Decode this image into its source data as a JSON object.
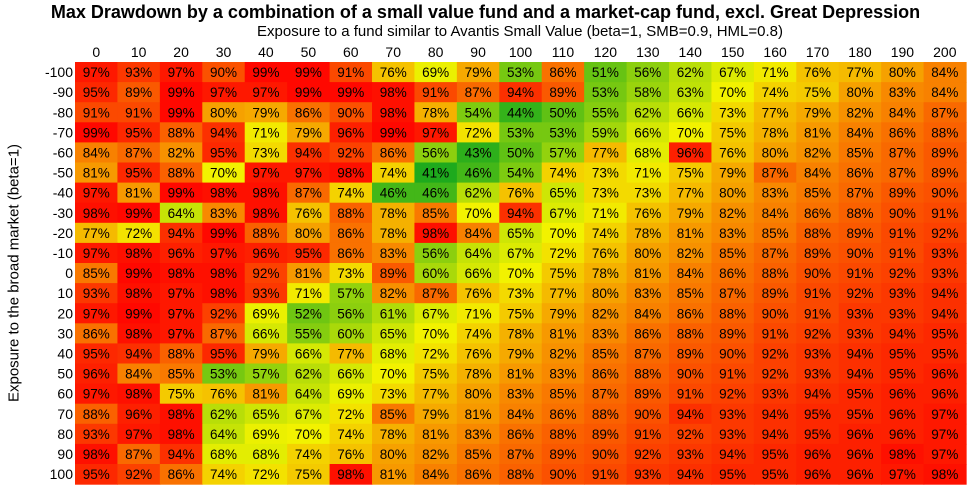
{
  "chart_data": {
    "type": "heatmap",
    "title": "Max Drawdown by a combination of a small value fund and a market-cap fund, excl. Great Depression",
    "xlabel": "Exposure to a fund similar to Avantis Small Value (beta=1, SMB=0.9, HML=0.8)",
    "ylabel": "Exposure to the broad market (beta=1)",
    "x": [
      0,
      10,
      20,
      30,
      40,
      50,
      60,
      70,
      80,
      90,
      100,
      110,
      120,
      130,
      140,
      150,
      160,
      170,
      180,
      190,
      200
    ],
    "y": [
      -100,
      -90,
      -80,
      -70,
      -60,
      -50,
      -40,
      -30,
      -20,
      -10,
      0,
      10,
      20,
      30,
      40,
      50,
      60,
      70,
      80,
      90,
      100
    ],
    "value_unit": "%",
    "values": [
      [
        97,
        93,
        97,
        90,
        99,
        99,
        91,
        76,
        69,
        79,
        53,
        86,
        51,
        56,
        62,
        67,
        71,
        76,
        77,
        80,
        84
      ],
      [
        95,
        89,
        99,
        97,
        97,
        99,
        99,
        98,
        91,
        87,
        94,
        89,
        53,
        58,
        63,
        70,
        74,
        75,
        80,
        83,
        84
      ],
      [
        91,
        91,
        99,
        80,
        79,
        86,
        90,
        98,
        78,
        54,
        44,
        50,
        55,
        62,
        66,
        73,
        77,
        79,
        82,
        84,
        87
      ],
      [
        99,
        95,
        88,
        94,
        71,
        79,
        96,
        99,
        97,
        72,
        53,
        53,
        59,
        66,
        70,
        75,
        78,
        81,
        84,
        86,
        88
      ],
      [
        84,
        87,
        82,
        95,
        73,
        94,
        92,
        86,
        56,
        43,
        50,
        57,
        77,
        68,
        96,
        76,
        80,
        82,
        85,
        87,
        89
      ],
      [
        81,
        95,
        88,
        70,
        97,
        97,
        98,
        74,
        41,
        46,
        54,
        74,
        73,
        71,
        75,
        79,
        87,
        84,
        86,
        87,
        89
      ],
      [
        97,
        81,
        99,
        98,
        98,
        87,
        74,
        46,
        46,
        62,
        76,
        65,
        73,
        73,
        77,
        80,
        83,
        85,
        87,
        89,
        90
      ],
      [
        98,
        99,
        64,
        83,
        98,
        76,
        88,
        78,
        85,
        70,
        94,
        67,
        71,
        76,
        79,
        82,
        84,
        86,
        88,
        90,
        91
      ],
      [
        77,
        72,
        94,
        99,
        88,
        80,
        86,
        78,
        98,
        84,
        65,
        70,
        74,
        78,
        81,
        83,
        85,
        88,
        89,
        91,
        92
      ],
      [
        97,
        98,
        96,
        97,
        96,
        95,
        86,
        83,
        56,
        64,
        67,
        72,
        76,
        80,
        82,
        85,
        87,
        89,
        90,
        91,
        93
      ],
      [
        85,
        99,
        98,
        98,
        92,
        81,
        73,
        89,
        60,
        66,
        70,
        75,
        78,
        81,
        84,
        86,
        88,
        90,
        91,
        92,
        93
      ],
      [
        93,
        98,
        97,
        98,
        93,
        71,
        57,
        82,
        87,
        76,
        73,
        77,
        80,
        83,
        85,
        87,
        89,
        91,
        92,
        93,
        94
      ],
      [
        97,
        99,
        97,
        92,
        69,
        52,
        56,
        61,
        67,
        71,
        75,
        79,
        82,
        84,
        86,
        88,
        90,
        91,
        93,
        93,
        94
      ],
      [
        86,
        98,
        97,
        87,
        66,
        55,
        60,
        65,
        70,
        74,
        78,
        81,
        83,
        86,
        88,
        89,
        91,
        92,
        93,
        94,
        95
      ],
      [
        95,
        94,
        88,
        95,
        79,
        66,
        77,
        68,
        72,
        76,
        79,
        82,
        85,
        87,
        89,
        90,
        92,
        93,
        94,
        95,
        95
      ],
      [
        96,
        84,
        85,
        53,
        57,
        62,
        66,
        70,
        75,
        78,
        81,
        83,
        86,
        88,
        90,
        91,
        92,
        93,
        94,
        95,
        96
      ],
      [
        97,
        98,
        75,
        76,
        81,
        64,
        69,
        73,
        77,
        80,
        83,
        85,
        87,
        89,
        91,
        92,
        93,
        94,
        95,
        96,
        96
      ],
      [
        88,
        96,
        98,
        62,
        65,
        67,
        72,
        85,
        79,
        81,
        84,
        86,
        88,
        90,
        94,
        93,
        94,
        95,
        95,
        96,
        97
      ],
      [
        93,
        97,
        98,
        64,
        69,
        70,
        74,
        78,
        81,
        83,
        86,
        88,
        89,
        91,
        92,
        93,
        94,
        95,
        96,
        96,
        97
      ],
      [
        98,
        87,
        94,
        68,
        68,
        74,
        76,
        80,
        82,
        85,
        87,
        89,
        90,
        92,
        93,
        94,
        95,
        96,
        96,
        98,
        97
      ],
      [
        95,
        92,
        86,
        74,
        72,
        75,
        98,
        81,
        84,
        86,
        88,
        90,
        91,
        93,
        94,
        95,
        95,
        96,
        96,
        97,
        98
      ]
    ],
    "colorscale": [
      "#17a81e",
      "#f2f200",
      "#ff0000"
    ],
    "color_range": [
      40,
      100
    ],
    "grid": false,
    "legend": "none"
  }
}
